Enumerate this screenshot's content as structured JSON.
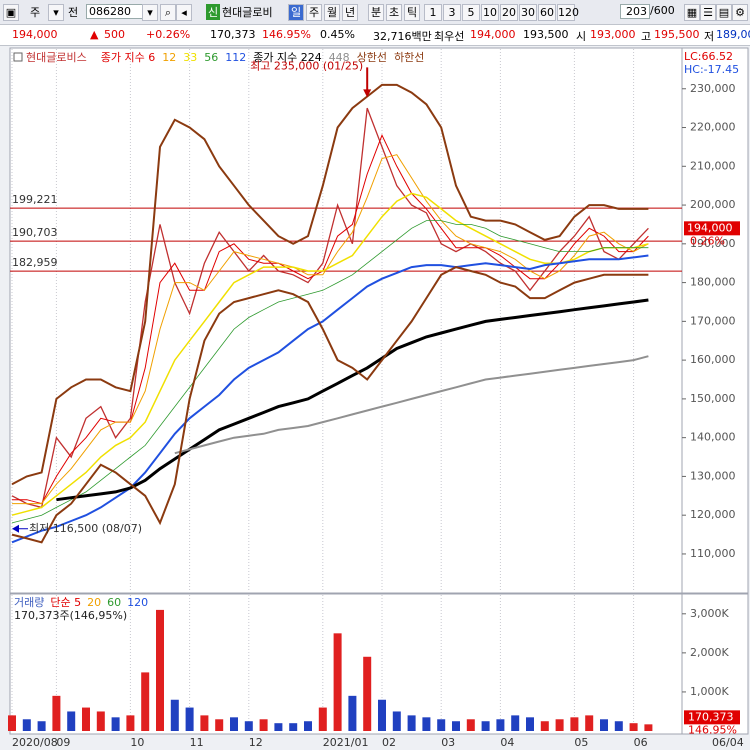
{
  "toolbar": {
    "market": "주",
    "scope": "전",
    "code": "086280",
    "badge": "신",
    "name": "현대글로비",
    "periods": [
      "일",
      "주",
      "월",
      "년",
      "분",
      "초",
      "틱"
    ],
    "intervals": [
      "1",
      "3",
      "5",
      "10",
      "20",
      "30",
      "60",
      "120"
    ],
    "count": "203",
    "total": "/600"
  },
  "info_bar": {
    "price": "194,000",
    "change": "500",
    "change_pct": "+0.26%",
    "volume": "170,373",
    "volume_ratio": "146.95%",
    "turnover": "0.45%",
    "amount": "32,716백만",
    "best_label": "최우선",
    "ask": "194,000",
    "bid": "193,500",
    "open_label": "시",
    "open": "193,000",
    "high_label": "고",
    "high": "195,500",
    "low_label": "저",
    "low": "189,000"
  },
  "chart_data": [
    {
      "type": "line",
      "categories": [
        "2020/08",
        null,
        null,
        "09",
        null,
        null,
        null,
        null,
        "10",
        null,
        null,
        null,
        "11",
        null,
        null,
        null,
        "12",
        null,
        null,
        null,
        null,
        "2021/01",
        null,
        null,
        null,
        "02",
        null,
        null,
        null,
        "03",
        null,
        null,
        null,
        "04",
        null,
        null,
        null,
        null,
        "05",
        null,
        null,
        null,
        "06",
        null
      ],
      "x_end_label": "06/04",
      "corner": [
        "LC:66.52",
        "HC:-17.45"
      ],
      "ylim": [
        100700,
        240000
      ],
      "yticks": [
        {
          "value": 110000,
          "label": "110,000"
        },
        {
          "value": 120000,
          "label": "120,000"
        },
        {
          "value": 130000,
          "label": "130,000"
        },
        {
          "value": 140000,
          "label": "140,000"
        },
        {
          "value": 150000,
          "label": "150,000"
        },
        {
          "value": 160000,
          "label": "160,000"
        },
        {
          "value": 170000,
          "label": "170,000"
        },
        {
          "value": 180000,
          "label": "180,000"
        },
        {
          "value": 190000,
          "label": "190,000"
        },
        {
          "value": 200000,
          "label": "200,000"
        },
        {
          "value": 210000,
          "label": "210,000"
        },
        {
          "value": 220000,
          "label": "220,000"
        },
        {
          "value": 230000,
          "label": "230,000"
        }
      ],
      "hlines": [
        {
          "value": 199221,
          "label": "199,221"
        },
        {
          "value": 190703,
          "label": "190,703"
        },
        {
          "value": 182959,
          "label": "182,959"
        }
      ],
      "hline_color": "#c00000",
      "last_price": {
        "value": 194000,
        "label": "194,000",
        "change": "0.26%"
      },
      "annotations": [
        {
          "text": "최고 235,000 (01/25)",
          "value": 235000,
          "index": 24,
          "color": "#c00000"
        },
        {
          "text": "최저 116,500 (08/07)",
          "value": 116500,
          "index": 0,
          "color": "#0000c0"
        }
      ],
      "series": [
        {
          "name": "현대글로비스",
          "color": "#c03030",
          "values": [
            125000,
            123000,
            122000,
            140000,
            135000,
            145000,
            148000,
            140000,
            145000,
            175000,
            195000,
            180000,
            172000,
            185000,
            193000,
            188000,
            183000,
            187000,
            183000,
            182000,
            180000,
            185000,
            200000,
            190000,
            225000,
            215000,
            205000,
            200000,
            198000,
            190000,
            188000,
            190000,
            188000,
            185000,
            183000,
            178000,
            183000,
            188000,
            192000,
            197000,
            188000,
            186000,
            190000,
            194000
          ]
        },
        {
          "name": "종가 지수 6",
          "color": "#e00000",
          "values": [
            124000,
            124000,
            123000,
            130000,
            136000,
            140000,
            145000,
            144000,
            144000,
            158000,
            180000,
            185000,
            178000,
            178000,
            188000,
            190000,
            186000,
            185000,
            185000,
            183000,
            181000,
            183000,
            192000,
            195000,
            208000,
            218000,
            210000,
            203000,
            199000,
            194000,
            189000,
            189000,
            189000,
            187000,
            184000,
            181000,
            181000,
            185000,
            190000,
            194000,
            192000,
            188000,
            188000,
            192000
          ]
        },
        {
          "name": "12",
          "color": "#f0a000",
          "values": [
            123000,
            123000,
            123000,
            128000,
            132000,
            137000,
            142000,
            144000,
            144000,
            152000,
            168000,
            180000,
            180000,
            178000,
            183000,
            188000,
            187000,
            186000,
            185000,
            184000,
            182000,
            182000,
            188000,
            193000,
            202000,
            212000,
            213000,
            207000,
            201000,
            196000,
            192000,
            190000,
            189000,
            188000,
            186000,
            183000,
            181000,
            183000,
            187000,
            192000,
            193000,
            190000,
            188000,
            190000
          ]
        },
        {
          "name": "33",
          "color": "#f0e000",
          "values": [
            120000,
            121000,
            122000,
            125000,
            128000,
            131000,
            135000,
            138000,
            140000,
            144000,
            152000,
            160000,
            165000,
            170000,
            175000,
            180000,
            182000,
            184000,
            184000,
            184000,
            183000,
            183000,
            185000,
            187000,
            192000,
            197000,
            201000,
            203000,
            202000,
            199000,
            196000,
            194000,
            192000,
            190000,
            188000,
            186000,
            185000,
            185000,
            186000,
            188000,
            189000,
            189000,
            189000,
            190000
          ]
        },
        {
          "name": "56",
          "color": "#2e9a2e",
          "values": [
            118000,
            119000,
            120000,
            122000,
            124000,
            126000,
            129000,
            132000,
            135000,
            138000,
            143000,
            148000,
            153000,
            158000,
            163000,
            168000,
            171000,
            173000,
            175000,
            176000,
            177000,
            178000,
            180000,
            182000,
            185000,
            188000,
            191000,
            194000,
            196000,
            196000,
            195000,
            195000,
            194000,
            192000,
            191000,
            190000,
            189000,
            188000,
            188000,
            188000,
            189000,
            189000,
            189000,
            189000
          ]
        },
        {
          "name": "112",
          "color": "#2050e0",
          "values": [
            113000,
            114500,
            116000,
            117000,
            118500,
            120000,
            122000,
            124500,
            127000,
            131000,
            136000,
            141000,
            145000,
            148000,
            151000,
            155000,
            158000,
            160000,
            162000,
            165000,
            168000,
            170000,
            173000,
            176000,
            179000,
            181000,
            182500,
            184000,
            184500,
            184500,
            184000,
            184500,
            185000,
            184500,
            184000,
            183500,
            184500,
            185000,
            185500,
            186000,
            186000,
            186000,
            186500,
            187000
          ]
        },
        {
          "name": "종가 지수 224",
          "color": "#000000",
          "values": [
            null,
            null,
            null,
            124000,
            124500,
            125000,
            125500,
            126000,
            127000,
            129000,
            132000,
            134500,
            137000,
            139500,
            142000,
            143500,
            145000,
            146500,
            148000,
            149000,
            150000,
            152000,
            154000,
            156000,
            158000,
            160500,
            163000,
            164500,
            166000,
            167000,
            168000,
            169000,
            170000,
            170500,
            171000,
            171500,
            172000,
            172500,
            173000,
            173500,
            174000,
            174500,
            175000,
            175500
          ]
        },
        {
          "name": "448",
          "color": "#909090",
          "values": [
            null,
            null,
            null,
            null,
            null,
            null,
            null,
            null,
            null,
            null,
            null,
            136000,
            137000,
            138000,
            139000,
            140000,
            140500,
            141000,
            142000,
            142500,
            143000,
            144000,
            145000,
            146000,
            147000,
            148000,
            149000,
            150000,
            151000,
            152000,
            153000,
            154000,
            155000,
            155500,
            156000,
            156500,
            157000,
            157500,
            158000,
            158500,
            159000,
            159500,
            160000,
            161000
          ]
        },
        {
          "name": "상한선",
          "color": "#8b3a10",
          "values": [
            128000,
            130000,
            131000,
            150000,
            153000,
            155000,
            155000,
            153000,
            152000,
            170000,
            215000,
            222000,
            220000,
            217000,
            210000,
            205000,
            200000,
            196000,
            192000,
            190000,
            192000,
            205000,
            220000,
            225000,
            228000,
            231000,
            231000,
            229000,
            226000,
            220000,
            205000,
            197000,
            196000,
            196000,
            195000,
            193000,
            191000,
            192000,
            197000,
            200000,
            200000,
            199000,
            199000,
            199000
          ]
        },
        {
          "name": "하한선",
          "color": "#8b3a10",
          "values": [
            115000,
            114000,
            113000,
            120000,
            123000,
            128000,
            133000,
            131000,
            128000,
            125000,
            118000,
            128000,
            150000,
            165000,
            172000,
            175000,
            176000,
            177000,
            178000,
            177000,
            175000,
            168000,
            160000,
            158000,
            155000,
            160000,
            165000,
            170000,
            176000,
            182000,
            184000,
            183000,
            182000,
            180000,
            179000,
            176000,
            176000,
            178000,
            180000,
            181000,
            182000,
            182000,
            182000,
            182000
          ]
        }
      ]
    },
    {
      "type": "bar",
      "legend": [
        {
          "name": "거래량",
          "color": "#4060c0"
        },
        {
          "name": "단순 5",
          "color": "#e00000"
        },
        {
          "name": "20",
          "color": "#f0a000"
        },
        {
          "name": "60",
          "color": "#2e9a2e"
        },
        {
          "name": "120",
          "color": "#2050e0"
        }
      ],
      "summary": "170,373주(146,95%)",
      "up_color": "#e02020",
      "down_color": "#2040c0",
      "ylim": [
        0,
        3430000
      ],
      "yticks": [
        {
          "value": 1000000,
          "label": "1,000K"
        },
        {
          "value": 2000000,
          "label": "2,000K"
        },
        {
          "value": 3000000,
          "label": "3,000K"
        }
      ],
      "last": {
        "value": 170373,
        "label": "170,373",
        "ratio": "146.95%"
      },
      "values": [
        400000,
        300000,
        250000,
        900000,
        500000,
        600000,
        500000,
        350000,
        400000,
        1500000,
        3100000,
        800000,
        600000,
        400000,
        300000,
        350000,
        250000,
        300000,
        200000,
        200000,
        250000,
        600000,
        2500000,
        900000,
        1900000,
        800000,
        500000,
        400000,
        350000,
        300000,
        250000,
        300000,
        250000,
        300000,
        400000,
        350000,
        250000,
        300000,
        350000,
        400000,
        300000,
        250000,
        200000,
        170373
      ]
    }
  ]
}
